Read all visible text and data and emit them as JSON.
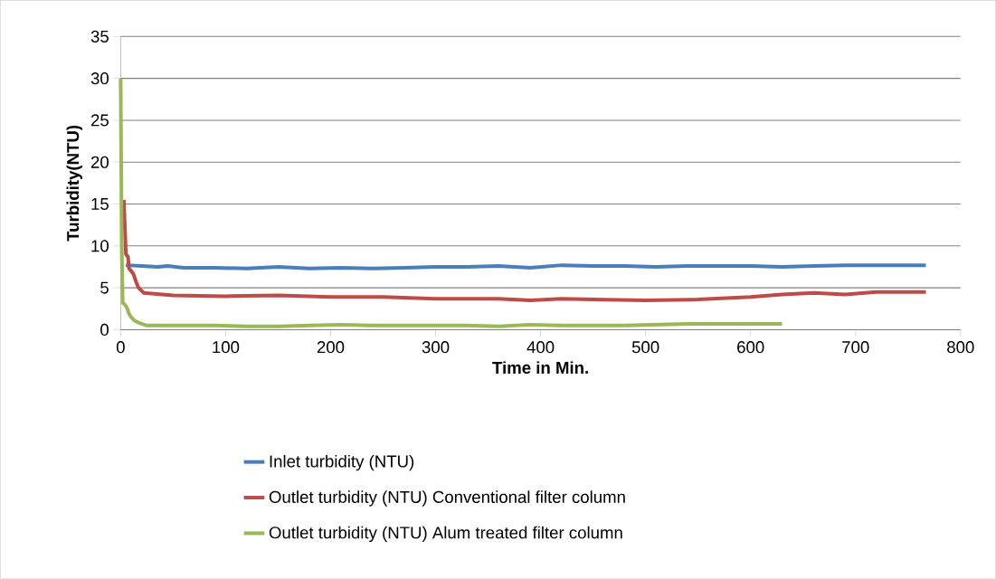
{
  "chart_data": {
    "type": "line",
    "xlabel": "Time in Min.",
    "ylabel": "Turbidity(NTU)",
    "xlim": [
      0,
      800
    ],
    "xticks": [
      0,
      100,
      200,
      300,
      400,
      500,
      600,
      700,
      800
    ],
    "ylim": [
      0,
      35
    ],
    "yticks": [
      0,
      5,
      10,
      15,
      20,
      25,
      30,
      35
    ],
    "grid": "y",
    "legend": "bottom",
    "marker": "none",
    "line_style": "solid",
    "series": [
      {
        "name": "Inlet turbidity (NTU)",
        "color": "#4a7ebb",
        "x": [
          5,
          20,
          35,
          45,
          60,
          90,
          120,
          150,
          180,
          210,
          240,
          270,
          300,
          330,
          360,
          390,
          420,
          450,
          480,
          510,
          540,
          570,
          600,
          630,
          660,
          690,
          720,
          767
        ],
        "values": [
          7.7,
          7.6,
          7.5,
          7.6,
          7.4,
          7.4,
          7.3,
          7.5,
          7.3,
          7.4,
          7.3,
          7.4,
          7.5,
          7.5,
          7.6,
          7.4,
          7.7,
          7.6,
          7.6,
          7.5,
          7.6,
          7.6,
          7.6,
          7.5,
          7.6,
          7.7,
          7.7,
          7.7
        ]
      },
      {
        "name": "Outlet turbidity (NTU) Conventional filter column",
        "color": "#be4b48",
        "x": [
          3,
          5,
          7,
          8,
          10,
          12,
          15,
          17,
          22,
          50,
          100,
          150,
          200,
          250,
          300,
          360,
          390,
          420,
          450,
          500,
          550,
          600,
          630,
          660,
          690,
          720,
          767
        ],
        "values": [
          15.5,
          9,
          8.7,
          7.3,
          7,
          6.7,
          5.6,
          5,
          4.4,
          4.1,
          4.0,
          4.1,
          3.9,
          3.9,
          3.7,
          3.7,
          3.5,
          3.7,
          3.6,
          3.5,
          3.6,
          3.9,
          4.2,
          4.4,
          4.2,
          4.5,
          4.5
        ]
      },
      {
        "name": "Outlet turbidity (NTU) Alum treated filter column",
        "color": "#98b954",
        "x": [
          0,
          1,
          2,
          4,
          6,
          8,
          10,
          13,
          16,
          20,
          25,
          50,
          90,
          120,
          150,
          180,
          210,
          240,
          300,
          330,
          360,
          390,
          420,
          480,
          540,
          600,
          630
        ],
        "values": [
          30,
          10,
          3.2,
          3.0,
          2.6,
          1.9,
          1.5,
          1.1,
          0.9,
          0.7,
          0.5,
          0.5,
          0.5,
          0.4,
          0.4,
          0.5,
          0.6,
          0.5,
          0.5,
          0.5,
          0.4,
          0.6,
          0.5,
          0.5,
          0.7,
          0.7,
          0.7
        ]
      }
    ]
  }
}
